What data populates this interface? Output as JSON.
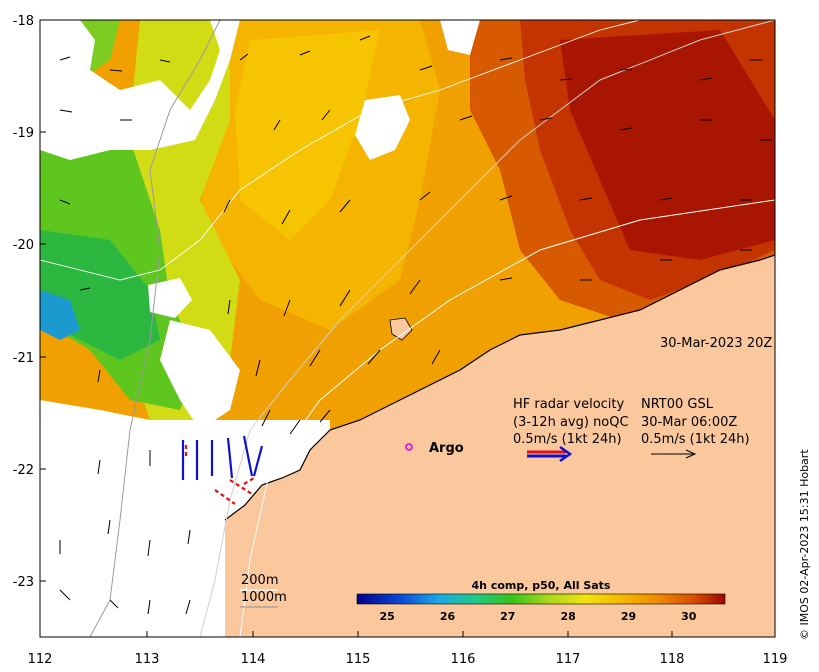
{
  "map": {
    "x_ticks": [
      "112",
      "113",
      "114",
      "115",
      "116",
      "117",
      "118",
      "119"
    ],
    "y_ticks": [
      "-18",
      "-19",
      "-20",
      "-21",
      "-22",
      "-23"
    ],
    "date_label": "30-Mar-2023 20Z",
    "radar_title": "HF radar velocity",
    "radar_avg": "(3-12h avg) noQC",
    "radar_scale": "0.5m/s (1kt 24h)",
    "nrt_title": "NRT00 GSL",
    "nrt_date": "30-Mar 06:00Z",
    "nrt_scale": "0.5m/s (1kt 24h)",
    "argo_label": "Argo",
    "depth_200": "200m",
    "depth_1000": "1000m",
    "credit": "© IMOS 02-Apr-2023 15:31 Hobart"
  },
  "colorbar": {
    "title": "4h comp, p50, All Sats",
    "tick_labels": [
      "25",
      "26",
      "27",
      "28",
      "29",
      "30"
    ],
    "range": [
      24.5,
      30.6
    ]
  },
  "colors": {
    "land": "#fbc89e",
    "argo": "#e400e4",
    "radar_red": "#e01010",
    "radar_blue": "#1010d0"
  }
}
